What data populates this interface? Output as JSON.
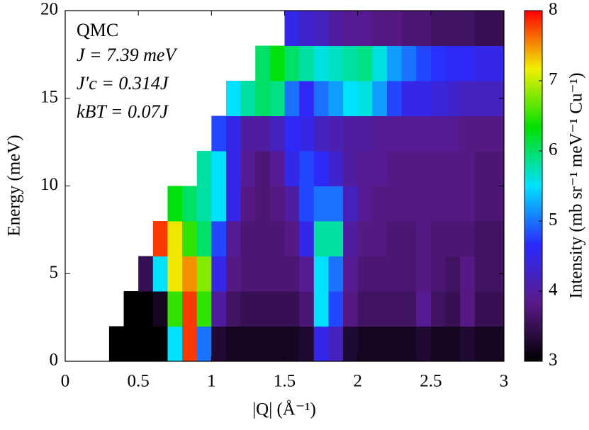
{
  "chart_data": {
    "type": "heatmap",
    "xlabel": "|Q| (Å⁻¹)",
    "ylabel": "Energy (meV)",
    "colorbar_label": "Intensity (mb sr⁻¹ meV⁻¹ Cu⁻¹)",
    "annotations": [
      "QMC",
      "J = 7.39 meV",
      "J′c = 0.314J",
      "kBT = 0.07J"
    ],
    "x": [
      0.05,
      0.15,
      0.25,
      0.35,
      0.45,
      0.55,
      0.65,
      0.75,
      0.85,
      0.95,
      1.05,
      1.15,
      1.25,
      1.35,
      1.45,
      1.55,
      1.65,
      1.75,
      1.85,
      1.95,
      2.05,
      2.15,
      2.25,
      2.35,
      2.45,
      2.55,
      2.65,
      2.75,
      2.85,
      2.95
    ],
    "y": [
      1,
      3,
      5,
      7,
      9,
      11,
      13,
      15,
      17,
      19
    ],
    "z": [
      [
        null,
        null,
        null,
        3.0,
        3.0,
        3.0,
        3.0,
        5.5,
        7.8,
        5.0,
        3.3,
        3.2,
        3.2,
        3.2,
        3.2,
        3.2,
        3.3,
        4.5,
        4.2,
        3.3,
        3.2,
        3.2,
        3.2,
        3.2,
        3.3,
        3.2,
        3.2,
        3.3,
        3.2,
        3.2
      ],
      [
        null,
        null,
        null,
        null,
        3.0,
        3.0,
        3.2,
        6.5,
        7.8,
        6.5,
        4.0,
        3.6,
        3.5,
        3.5,
        3.5,
        3.5,
        3.7,
        5.5,
        4.8,
        3.8,
        3.6,
        3.6,
        3.6,
        3.6,
        3.9,
        3.6,
        3.5,
        3.8,
        3.5,
        3.5
      ],
      [
        null,
        null,
        null,
        null,
        null,
        3.5,
        5.5,
        7.2,
        7.5,
        6.8,
        4.5,
        3.8,
        3.7,
        3.7,
        3.7,
        3.7,
        3.9,
        5.5,
        5.0,
        3.9,
        3.7,
        3.7,
        3.7,
        3.7,
        3.8,
        3.7,
        3.6,
        3.8,
        3.6,
        3.6
      ],
      [
        null,
        null,
        null,
        null,
        null,
        null,
        7.8,
        7.2,
        6.5,
        6.0,
        4.8,
        3.9,
        3.7,
        3.7,
        3.7,
        3.8,
        4.5,
        5.8,
        5.8,
        4.0,
        3.8,
        3.8,
        3.7,
        3.7,
        3.8,
        3.7,
        3.7,
        3.7,
        3.6,
        3.6
      ],
      [
        null,
        null,
        null,
        null,
        null,
        null,
        null,
        6.3,
        6.0,
        5.8,
        5.5,
        4.5,
        3.8,
        3.7,
        3.8,
        4.0,
        4.8,
        5.0,
        5.0,
        4.2,
        3.9,
        3.8,
        3.8,
        3.8,
        3.8,
        3.8,
        3.8,
        3.8,
        3.7,
        3.7
      ],
      [
        null,
        null,
        null,
        null,
        null,
        null,
        null,
        null,
        null,
        5.8,
        5.5,
        4.5,
        3.9,
        3.7,
        3.9,
        4.5,
        4.8,
        4.6,
        4.3,
        4.0,
        3.9,
        3.9,
        3.8,
        3.8,
        3.8,
        3.8,
        3.8,
        3.8,
        3.7,
        3.7
      ],
      [
        null,
        null,
        null,
        null,
        null,
        null,
        null,
        null,
        null,
        null,
        4.8,
        4.5,
        4.0,
        4.0,
        4.2,
        4.6,
        4.5,
        4.2,
        4.1,
        4.0,
        4.0,
        3.9,
        3.9,
        3.9,
        3.9,
        3.9,
        3.9,
        3.8,
        3.8,
        3.8
      ],
      [
        null,
        null,
        null,
        null,
        null,
        null,
        null,
        null,
        null,
        null,
        null,
        5.5,
        5.8,
        6.0,
        5.9,
        5.0,
        4.6,
        5.0,
        5.2,
        5.5,
        5.6,
        5.2,
        4.8,
        4.5,
        4.5,
        4.4,
        4.3,
        4.2,
        4.2,
        4.2
      ],
      [
        null,
        null,
        null,
        null,
        null,
        null,
        null,
        null,
        null,
        null,
        null,
        null,
        null,
        6.0,
        6.3,
        6.0,
        5.8,
        5.6,
        5.7,
        5.8,
        5.9,
        5.6,
        5.2,
        5.0,
        4.8,
        4.7,
        4.6,
        4.6,
        4.5,
        4.5
      ],
      [
        null,
        null,
        null,
        null,
        null,
        null,
        null,
        null,
        null,
        null,
        null,
        null,
        null,
        null,
        null,
        4.5,
        4.3,
        4.2,
        4.0,
        3.9,
        3.9,
        3.8,
        3.8,
        3.7,
        3.7,
        3.6,
        3.6,
        3.6,
        3.5,
        3.5
      ]
    ],
    "xlim": [
      0,
      3
    ],
    "ylim": [
      0,
      20
    ],
    "zlim": [
      3,
      8
    ],
    "xticks": [
      0,
      0.5,
      1,
      1.5,
      2,
      2.5,
      3
    ],
    "yticks": [
      0,
      5,
      10,
      15,
      20
    ],
    "zticks": [
      3,
      4,
      5,
      6,
      7,
      8
    ],
    "colormap": [
      "#000000",
      "#5a1a8a",
      "#2a2aff",
      "#00e0ff",
      "#00e000",
      "#f0f000",
      "#ff0000"
    ]
  }
}
